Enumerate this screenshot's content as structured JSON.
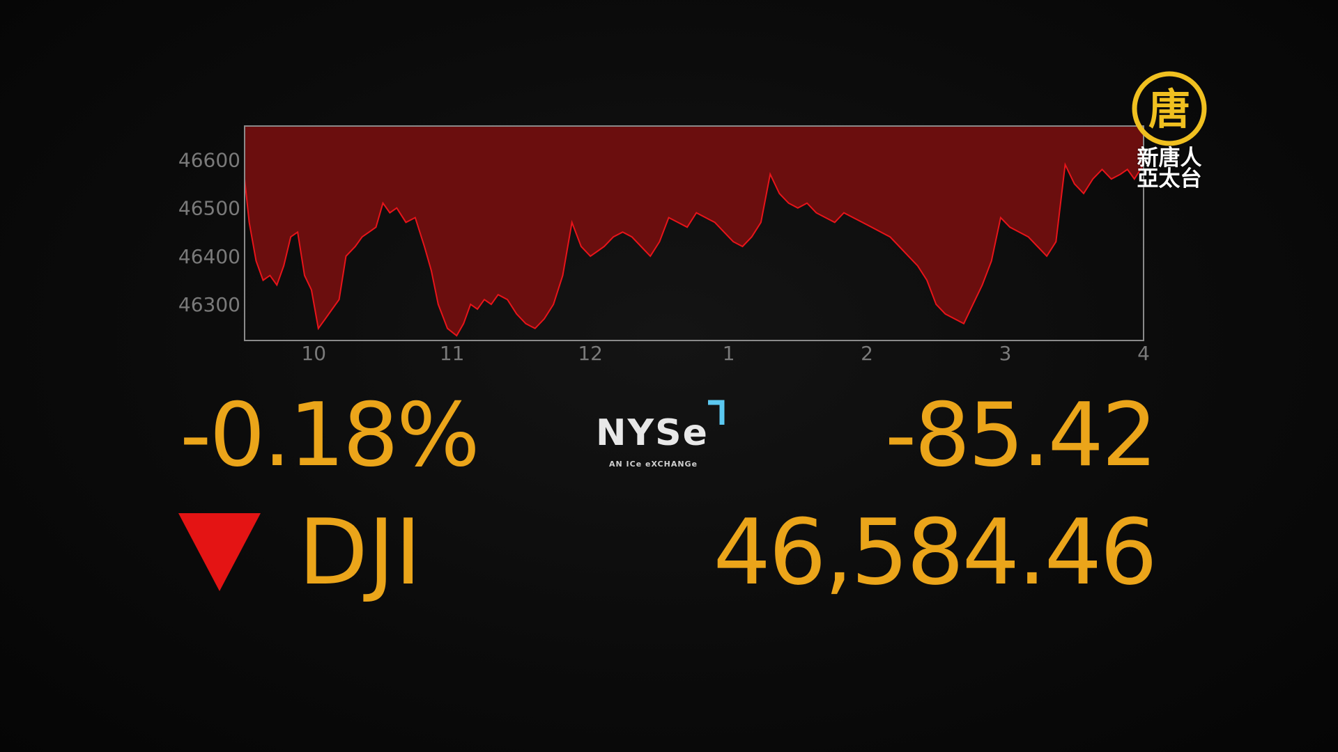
{
  "chart_data": {
    "type": "area",
    "title": "",
    "xlabel": "",
    "ylabel": "",
    "x_ticks": [
      "10",
      "11",
      "12",
      "1",
      "2",
      "3",
      "4"
    ],
    "y_ticks": [
      "46600",
      "46500",
      "46400",
      "46300"
    ],
    "ylim": [
      46225,
      46670
    ],
    "series": [
      {
        "x": [
          "9:30",
          "9:32",
          "9:35",
          "9:38",
          "9:41",
          "9:44",
          "9:47",
          "9:50",
          "9:53",
          "9:56",
          "9:59",
          "10:02",
          "10:05",
          "10:08",
          "10:11",
          "10:14",
          "10:18",
          "10:21",
          "10:24",
          "10:27",
          "10:30",
          "10:33",
          "10:36",
          "10:40",
          "10:44",
          "10:48",
          "10:51",
          "10:54",
          "10:58",
          "11:02",
          "11:05",
          "11:08",
          "11:11",
          "11:14",
          "11:17",
          "11:20",
          "11:24",
          "11:28",
          "11:32",
          "11:36",
          "11:40",
          "11:44",
          "11:48",
          "11:52",
          "11:56",
          "12:00",
          "12:03",
          "12:06",
          "12:10",
          "12:14",
          "12:18",
          "12:22",
          "12:26",
          "12:30",
          "12:34",
          "12:38",
          "12:42",
          "12:46",
          "12:50",
          "12:54",
          "12:58",
          "13:02",
          "13:06",
          "13:10",
          "13:14",
          "13:18",
          "13:22",
          "13:26",
          "13:30",
          "13:34",
          "13:38",
          "13:42",
          "13:46",
          "13:50",
          "13:54",
          "13:58",
          "14:02",
          "14:06",
          "14:10",
          "14:14",
          "14:18",
          "14:22",
          "14:26",
          "14:30",
          "14:34",
          "14:38",
          "14:42",
          "14:46",
          "14:50",
          "14:54",
          "14:58",
          "15:02",
          "15:06",
          "15:10",
          "15:14",
          "15:18",
          "15:22",
          "15:26",
          "15:30",
          "15:34",
          "15:38",
          "15:42",
          "15:46",
          "15:50",
          "15:53",
          "15:56",
          "16:00"
        ],
        "values": [
          46560,
          46470,
          46390,
          46350,
          46360,
          46340,
          46380,
          46440,
          46450,
          46360,
          46330,
          46250,
          46270,
          46290,
          46310,
          46400,
          46420,
          46440,
          46450,
          46460,
          46510,
          46490,
          46500,
          46470,
          46480,
          46420,
          46370,
          46300,
          46250,
          46235,
          46260,
          46300,
          46290,
          46310,
          46300,
          46320,
          46310,
          46280,
          46260,
          46250,
          46270,
          46300,
          46360,
          46470,
          46420,
          46400,
          46410,
          46420,
          46440,
          46450,
          46440,
          46420,
          46400,
          46430,
          46480,
          46470,
          46460,
          46490,
          46480,
          46470,
          46450,
          46430,
          46420,
          46440,
          46470,
          46570,
          46530,
          46510,
          46500,
          46510,
          46490,
          46480,
          46470,
          46490,
          46480,
          46470,
          46460,
          46450,
          46440,
          46420,
          46400,
          46380,
          46350,
          46300,
          46280,
          46270,
          46260,
          46300,
          46340,
          46390,
          46480,
          46460,
          46450,
          46440,
          46420,
          46400,
          46430,
          46590,
          46550,
          46530,
          46560,
          46580,
          46560,
          46570,
          46580,
          46560,
          46590
        ]
      }
    ]
  },
  "quote": {
    "percent_change": "-0.18%",
    "point_change": "-85.42",
    "symbol": "DJI",
    "price": "46,584.46",
    "direction": "down"
  },
  "exchange": {
    "name": "NYSe",
    "tagline": "AN ICe eXCHANGe"
  },
  "broadcaster": {
    "logo_glyph": "唐",
    "name_line1": "新唐人",
    "name_line2": "亞太台"
  },
  "colors": {
    "accent": "#eba51a",
    "line": "#e8141a",
    "area_fill": "#6b0e0e",
    "down_arrow": "#e41414",
    "axis_text": "#7a7a7a",
    "frame": "#8a8a8a",
    "nyse_bracket": "#5bc8f0",
    "logo_gold": "#f0c020"
  }
}
